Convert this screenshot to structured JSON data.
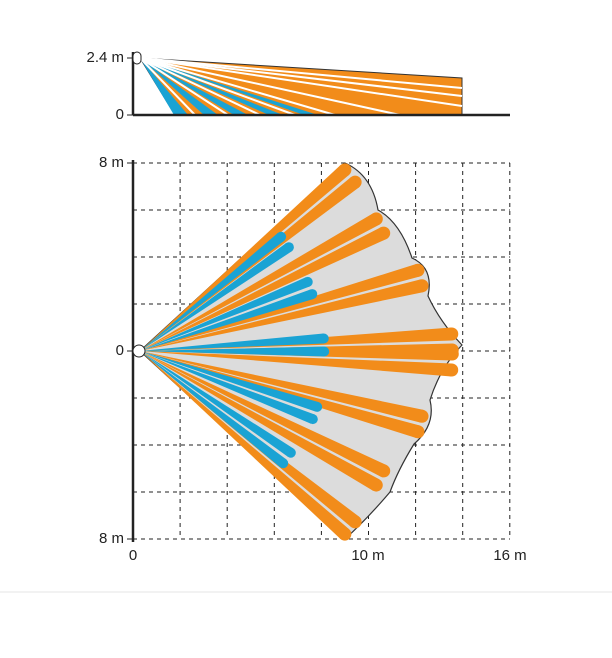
{
  "top_view": {
    "y_labels": [
      "2.4 m",
      "0"
    ]
  },
  "floor_view": {
    "y_labels": [
      "8 m",
      "0",
      "8 m"
    ],
    "x_labels": [
      "0",
      "10 m",
      "16 m"
    ]
  }
}
